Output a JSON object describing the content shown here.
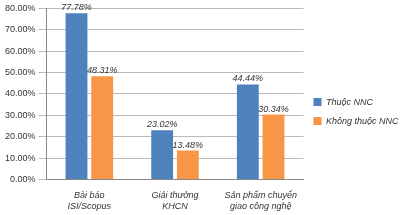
{
  "chart_data": {
    "type": "bar",
    "categories": [
      "Bài báo ISI/Scopus",
      "Giải thưởng KHCN",
      "Sản phẩm chuyển giao công nghệ"
    ],
    "series": [
      {
        "name": "Thuộc NNC",
        "color": "#4f81bd",
        "values": [
          77.78,
          23.02,
          44.44
        ],
        "value_labels": [
          "77.78%",
          "23.02%",
          "44.44%"
        ]
      },
      {
        "name": "Không thuộc NNC",
        "color": "#f79646",
        "values": [
          48.31,
          13.48,
          30.34
        ],
        "value_labels": [
          "48.31%",
          "13.48%",
          "30.34%"
        ]
      }
    ],
    "ylim": [
      0,
      80
    ],
    "yticks": [
      {
        "value": 0,
        "label": "0.00%"
      },
      {
        "value": 10,
        "label": "10.00%"
      },
      {
        "value": 20,
        "label": "20.00%"
      },
      {
        "value": 30,
        "label": "30.00%"
      },
      {
        "value": 40,
        "label": "40.00%"
      },
      {
        "value": 50,
        "label": "50.00%"
      },
      {
        "value": 60,
        "label": "60.00%"
      },
      {
        "value": 70,
        "label": "70.00%"
      },
      {
        "value": 80,
        "label": "80.00%"
      }
    ],
    "grid": true,
    "legend": "right",
    "data_labels": true
  }
}
